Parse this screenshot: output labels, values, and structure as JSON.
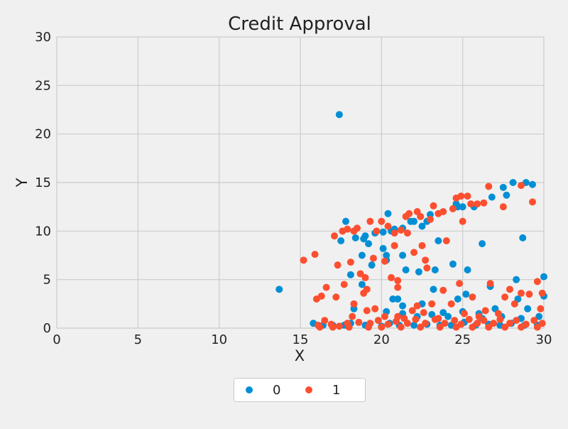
{
  "chart_data": {
    "type": "scatter",
    "title": "Credit Approval",
    "xlabel": "X",
    "ylabel": "Y",
    "xlim": [
      0,
      30
    ],
    "ylim": [
      0,
      30
    ],
    "x_ticks": [
      "0",
      "5",
      "10",
      "15",
      "20",
      "25",
      "30"
    ],
    "y_ticks": [
      "0",
      "5",
      "10",
      "15",
      "20",
      "25",
      "30"
    ],
    "grid": true,
    "legend_position": "bottom-center",
    "series": [
      {
        "name": "0",
        "color": "#008fd5",
        "points": [
          [
            13.7,
            4.0
          ],
          [
            17.4,
            22.0
          ],
          [
            17.5,
            9.0
          ],
          [
            17.8,
            11.0
          ],
          [
            18.1,
            5.5
          ],
          [
            18.4,
            9.3
          ],
          [
            18.8,
            7.5
          ],
          [
            18.9,
            9.2
          ],
          [
            19.0,
            9.5
          ],
          [
            19.2,
            8.7
          ],
          [
            19.4,
            6.5
          ],
          [
            19.6,
            9.8
          ],
          [
            20.1,
            8.2
          ],
          [
            20.1,
            9.9
          ],
          [
            20.3,
            7.5
          ],
          [
            20.3,
            7.0
          ],
          [
            20.4,
            11.8
          ],
          [
            20.6,
            10.0
          ],
          [
            20.8,
            10.2
          ],
          [
            21.3,
            7.5
          ],
          [
            21.3,
            10.3
          ],
          [
            21.5,
            6.0
          ],
          [
            21.8,
            11.0
          ],
          [
            22.0,
            11.0
          ],
          [
            22.3,
            5.8
          ],
          [
            22.5,
            10.5
          ],
          [
            22.8,
            11.0
          ],
          [
            23.0,
            11.7
          ],
          [
            23.3,
            6.0
          ],
          [
            23.5,
            9.0
          ],
          [
            24.4,
            6.6
          ],
          [
            24.6,
            12.8
          ],
          [
            24.7,
            12.5
          ],
          [
            25.0,
            12.5
          ],
          [
            25.3,
            6.0
          ],
          [
            25.7,
            12.5
          ],
          [
            26.2,
            8.7
          ],
          [
            26.7,
            4.3
          ],
          [
            26.8,
            13.5
          ],
          [
            27.5,
            14.5
          ],
          [
            27.7,
            13.7
          ],
          [
            28.1,
            15.0
          ],
          [
            28.3,
            5.0
          ],
          [
            28.7,
            9.3
          ],
          [
            28.9,
            15.0
          ],
          [
            29.3,
            14.8
          ],
          [
            30.0,
            5.3
          ],
          [
            30.0,
            3.3
          ],
          [
            18.3,
            2.0
          ],
          [
            18.8,
            4.5
          ],
          [
            20.7,
            3.0
          ],
          [
            21.0,
            3.0
          ],
          [
            21.3,
            2.3
          ],
          [
            22.5,
            2.5
          ],
          [
            23.2,
            4.0
          ],
          [
            23.8,
            1.6
          ],
          [
            24.7,
            3.0
          ],
          [
            25.2,
            3.5
          ],
          [
            26.0,
            1.5
          ],
          [
            27.0,
            2.0
          ],
          [
            28.4,
            3.0
          ],
          [
            29.0,
            2.0
          ],
          [
            15.8,
            0.5
          ],
          [
            16.4,
            0.3
          ],
          [
            17.0,
            0.3
          ],
          [
            17.7,
            0.3
          ],
          [
            18.1,
            0.5
          ],
          [
            19.0,
            0.3
          ],
          [
            20.0,
            0.2
          ],
          [
            20.5,
            0.5
          ],
          [
            21.1,
            0.3
          ],
          [
            22.0,
            0.3
          ],
          [
            22.8,
            0.4
          ],
          [
            23.6,
            0.3
          ],
          [
            24.3,
            0.3
          ],
          [
            25.1,
            0.6
          ],
          [
            25.8,
            0.3
          ],
          [
            26.6,
            0.4
          ],
          [
            27.3,
            0.3
          ],
          [
            28.0,
            0.5
          ],
          [
            28.8,
            0.3
          ],
          [
            29.6,
            0.3
          ],
          [
            20.3,
            1.7
          ],
          [
            21.3,
            1.5
          ],
          [
            22.2,
            1.2
          ],
          [
            23.1,
            1.4
          ],
          [
            24.1,
            1.2
          ],
          [
            25.0,
            1.7
          ],
          [
            26.2,
            1.0
          ],
          [
            27.4,
            1.2
          ],
          [
            28.6,
            1.0
          ],
          [
            29.7,
            1.2
          ]
        ]
      },
      {
        "name": "1",
        "color": "#fc4f30",
        "points": [
          [
            15.2,
            7.0
          ],
          [
            15.9,
            7.6
          ],
          [
            17.1,
            9.5
          ],
          [
            17.3,
            6.5
          ],
          [
            17.6,
            10.0
          ],
          [
            17.9,
            10.2
          ],
          [
            18.1,
            6.8
          ],
          [
            18.3,
            10.0
          ],
          [
            18.5,
            10.3
          ],
          [
            18.7,
            5.6
          ],
          [
            18.9,
            3.6
          ],
          [
            19.0,
            5.2
          ],
          [
            19.1,
            4.0
          ],
          [
            19.3,
            11.0
          ],
          [
            19.5,
            7.2
          ],
          [
            19.7,
            10.0
          ],
          [
            20.0,
            11.0
          ],
          [
            20.2,
            6.9
          ],
          [
            20.4,
            10.5
          ],
          [
            20.6,
            5.2
          ],
          [
            20.8,
            8.5
          ],
          [
            20.8,
            9.8
          ],
          [
            21.0,
            4.9
          ],
          [
            21.0,
            4.2
          ],
          [
            21.2,
            10.1
          ],
          [
            21.5,
            11.5
          ],
          [
            21.6,
            9.8
          ],
          [
            21.7,
            11.8
          ],
          [
            22.0,
            7.8
          ],
          [
            22.2,
            12.0
          ],
          [
            22.4,
            11.5
          ],
          [
            22.5,
            8.5
          ],
          [
            22.7,
            7.0
          ],
          [
            22.8,
            6.2
          ],
          [
            23.0,
            11.2
          ],
          [
            23.2,
            12.6
          ],
          [
            23.5,
            11.8
          ],
          [
            23.8,
            12.0
          ],
          [
            24.0,
            9.0
          ],
          [
            24.4,
            12.3
          ],
          [
            24.6,
            13.4
          ],
          [
            24.9,
            13.6
          ],
          [
            25.0,
            11.0
          ],
          [
            25.3,
            13.6
          ],
          [
            25.5,
            12.8
          ],
          [
            25.9,
            12.8
          ],
          [
            26.3,
            12.9
          ],
          [
            26.6,
            14.6
          ],
          [
            27.5,
            12.5
          ],
          [
            28.6,
            14.7
          ],
          [
            29.3,
            13.0
          ],
          [
            16.0,
            3.0
          ],
          [
            16.3,
            3.3
          ],
          [
            16.6,
            4.2
          ],
          [
            17.2,
            3.2
          ],
          [
            17.7,
            4.5
          ],
          [
            18.3,
            2.5
          ],
          [
            19.1,
            1.8
          ],
          [
            19.6,
            2.0
          ],
          [
            20.2,
            1.2
          ],
          [
            21.0,
            1.2
          ],
          [
            21.4,
            1.0
          ],
          [
            21.9,
            1.8
          ],
          [
            22.2,
            2.3
          ],
          [
            22.6,
            1.6
          ],
          [
            23.1,
            2.5
          ],
          [
            23.5,
            1.0
          ],
          [
            23.8,
            3.9
          ],
          [
            24.3,
            2.5
          ],
          [
            24.8,
            4.6
          ],
          [
            25.1,
            1.5
          ],
          [
            25.6,
            3.2
          ],
          [
            26.0,
            1.2
          ],
          [
            26.4,
            1.8
          ],
          [
            26.7,
            4.6
          ],
          [
            27.2,
            1.5
          ],
          [
            27.6,
            3.2
          ],
          [
            27.9,
            4.0
          ],
          [
            28.2,
            2.5
          ],
          [
            28.6,
            3.6
          ],
          [
            29.1,
            3.5
          ],
          [
            29.6,
            4.8
          ],
          [
            29.9,
            3.6
          ],
          [
            29.8,
            2.0
          ],
          [
            16.1,
            0.3
          ],
          [
            16.5,
            0.8
          ],
          [
            16.9,
            0.4
          ],
          [
            17.4,
            0.2
          ],
          [
            17.9,
            0.5
          ],
          [
            18.2,
            1.2
          ],
          [
            18.6,
            0.6
          ],
          [
            19.3,
            0.5
          ],
          [
            19.8,
            0.8
          ],
          [
            20.4,
            0.4
          ],
          [
            20.9,
            0.7
          ],
          [
            21.6,
            0.5
          ],
          [
            22.1,
            0.9
          ],
          [
            22.7,
            0.5
          ],
          [
            23.3,
            0.9
          ],
          [
            23.9,
            0.5
          ],
          [
            24.5,
            0.8
          ],
          [
            24.9,
            0.4
          ],
          [
            25.4,
            0.9
          ],
          [
            25.9,
            0.5
          ],
          [
            26.3,
            0.8
          ],
          [
            26.9,
            0.5
          ],
          [
            27.3,
            0.9
          ],
          [
            27.9,
            0.5
          ],
          [
            28.3,
            0.8
          ],
          [
            28.9,
            0.4
          ],
          [
            29.4,
            0.8
          ],
          [
            29.9,
            0.5
          ],
          [
            16.2,
            0.1
          ],
          [
            17.0,
            0.1
          ],
          [
            18.0,
            0.1
          ],
          [
            19.2,
            0.1
          ],
          [
            20.0,
            0.1
          ],
          [
            21.2,
            0.1
          ],
          [
            22.4,
            0.1
          ],
          [
            23.6,
            0.1
          ],
          [
            24.6,
            0.1
          ],
          [
            25.6,
            0.1
          ],
          [
            26.6,
            0.1
          ],
          [
            27.6,
            0.1
          ],
          [
            28.6,
            0.1
          ],
          [
            29.6,
            0.1
          ]
        ]
      }
    ]
  }
}
